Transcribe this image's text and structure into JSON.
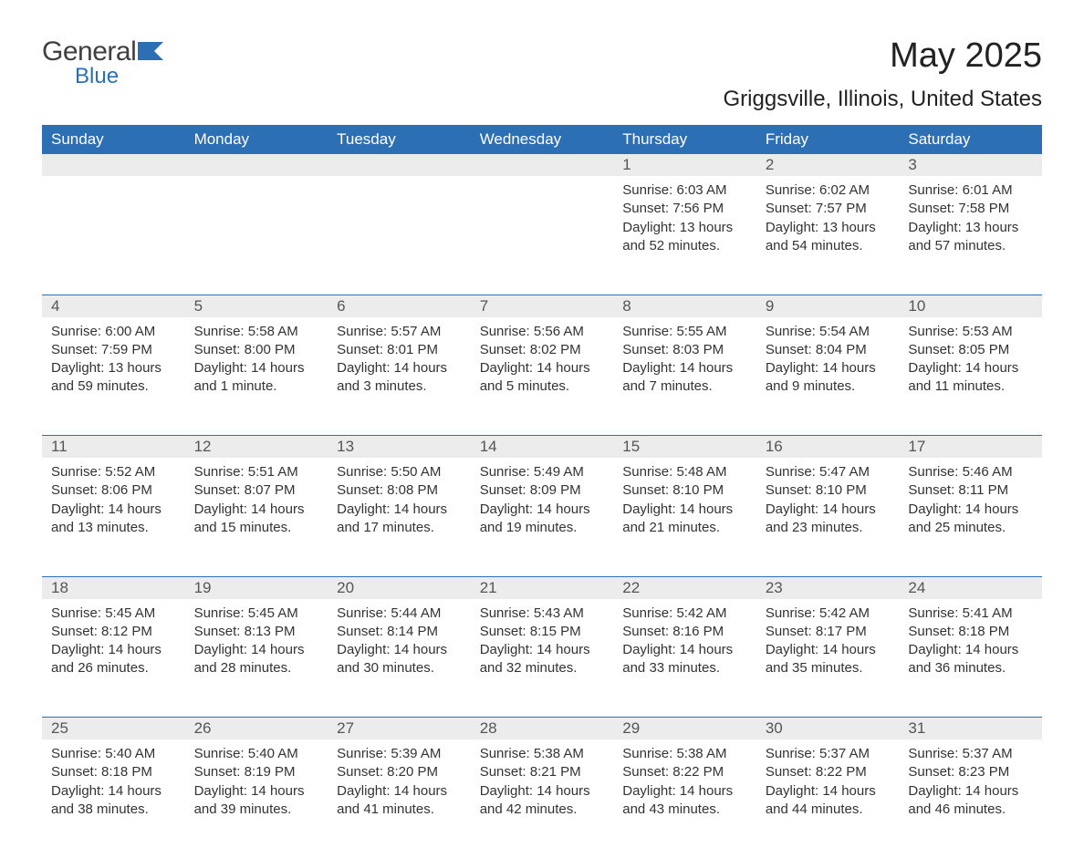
{
  "brand": {
    "name_part1": "General",
    "name_part2": "Blue",
    "accent_color": "#2d6fb5"
  },
  "title": "May 2025",
  "location": "Griggsville, Illinois, United States",
  "colors": {
    "header_bg": "#2d6fb5",
    "header_text": "#ffffff",
    "daynum_bg": "#ececec",
    "text": "#333333",
    "background": "#ffffff"
  },
  "fonts": {
    "title_size": 38,
    "location_size": 24,
    "header_size": 17,
    "body_size": 15
  },
  "weekdays": [
    "Sunday",
    "Monday",
    "Tuesday",
    "Wednesday",
    "Thursday",
    "Friday",
    "Saturday"
  ],
  "labels": {
    "sunrise": "Sunrise",
    "sunset": "Sunset",
    "daylight": "Daylight"
  },
  "weeks": [
    [
      null,
      null,
      null,
      null,
      {
        "day": "1",
        "sunrise": "6:03 AM",
        "sunset": "7:56 PM",
        "daylight": "13 hours and 52 minutes."
      },
      {
        "day": "2",
        "sunrise": "6:02 AM",
        "sunset": "7:57 PM",
        "daylight": "13 hours and 54 minutes."
      },
      {
        "day": "3",
        "sunrise": "6:01 AM",
        "sunset": "7:58 PM",
        "daylight": "13 hours and 57 minutes."
      }
    ],
    [
      {
        "day": "4",
        "sunrise": "6:00 AM",
        "sunset": "7:59 PM",
        "daylight": "13 hours and 59 minutes."
      },
      {
        "day": "5",
        "sunrise": "5:58 AM",
        "sunset": "8:00 PM",
        "daylight": "14 hours and 1 minute."
      },
      {
        "day": "6",
        "sunrise": "5:57 AM",
        "sunset": "8:01 PM",
        "daylight": "14 hours and 3 minutes."
      },
      {
        "day": "7",
        "sunrise": "5:56 AM",
        "sunset": "8:02 PM",
        "daylight": "14 hours and 5 minutes."
      },
      {
        "day": "8",
        "sunrise": "5:55 AM",
        "sunset": "8:03 PM",
        "daylight": "14 hours and 7 minutes."
      },
      {
        "day": "9",
        "sunrise": "5:54 AM",
        "sunset": "8:04 PM",
        "daylight": "14 hours and 9 minutes."
      },
      {
        "day": "10",
        "sunrise": "5:53 AM",
        "sunset": "8:05 PM",
        "daylight": "14 hours and 11 minutes."
      }
    ],
    [
      {
        "day": "11",
        "sunrise": "5:52 AM",
        "sunset": "8:06 PM",
        "daylight": "14 hours and 13 minutes."
      },
      {
        "day": "12",
        "sunrise": "5:51 AM",
        "sunset": "8:07 PM",
        "daylight": "14 hours and 15 minutes."
      },
      {
        "day": "13",
        "sunrise": "5:50 AM",
        "sunset": "8:08 PM",
        "daylight": "14 hours and 17 minutes."
      },
      {
        "day": "14",
        "sunrise": "5:49 AM",
        "sunset": "8:09 PM",
        "daylight": "14 hours and 19 minutes."
      },
      {
        "day": "15",
        "sunrise": "5:48 AM",
        "sunset": "8:10 PM",
        "daylight": "14 hours and 21 minutes."
      },
      {
        "day": "16",
        "sunrise": "5:47 AM",
        "sunset": "8:10 PM",
        "daylight": "14 hours and 23 minutes."
      },
      {
        "day": "17",
        "sunrise": "5:46 AM",
        "sunset": "8:11 PM",
        "daylight": "14 hours and 25 minutes."
      }
    ],
    [
      {
        "day": "18",
        "sunrise": "5:45 AM",
        "sunset": "8:12 PM",
        "daylight": "14 hours and 26 minutes."
      },
      {
        "day": "19",
        "sunrise": "5:45 AM",
        "sunset": "8:13 PM",
        "daylight": "14 hours and 28 minutes."
      },
      {
        "day": "20",
        "sunrise": "5:44 AM",
        "sunset": "8:14 PM",
        "daylight": "14 hours and 30 minutes."
      },
      {
        "day": "21",
        "sunrise": "5:43 AM",
        "sunset": "8:15 PM",
        "daylight": "14 hours and 32 minutes."
      },
      {
        "day": "22",
        "sunrise": "5:42 AM",
        "sunset": "8:16 PM",
        "daylight": "14 hours and 33 minutes."
      },
      {
        "day": "23",
        "sunrise": "5:42 AM",
        "sunset": "8:17 PM",
        "daylight": "14 hours and 35 minutes."
      },
      {
        "day": "24",
        "sunrise": "5:41 AM",
        "sunset": "8:18 PM",
        "daylight": "14 hours and 36 minutes."
      }
    ],
    [
      {
        "day": "25",
        "sunrise": "5:40 AM",
        "sunset": "8:18 PM",
        "daylight": "14 hours and 38 minutes."
      },
      {
        "day": "26",
        "sunrise": "5:40 AM",
        "sunset": "8:19 PM",
        "daylight": "14 hours and 39 minutes."
      },
      {
        "day": "27",
        "sunrise": "5:39 AM",
        "sunset": "8:20 PM",
        "daylight": "14 hours and 41 minutes."
      },
      {
        "day": "28",
        "sunrise": "5:38 AM",
        "sunset": "8:21 PM",
        "daylight": "14 hours and 42 minutes."
      },
      {
        "day": "29",
        "sunrise": "5:38 AM",
        "sunset": "8:22 PM",
        "daylight": "14 hours and 43 minutes."
      },
      {
        "day": "30",
        "sunrise": "5:37 AM",
        "sunset": "8:22 PM",
        "daylight": "14 hours and 44 minutes."
      },
      {
        "day": "31",
        "sunrise": "5:37 AM",
        "sunset": "8:23 PM",
        "daylight": "14 hours and 46 minutes."
      }
    ]
  ]
}
